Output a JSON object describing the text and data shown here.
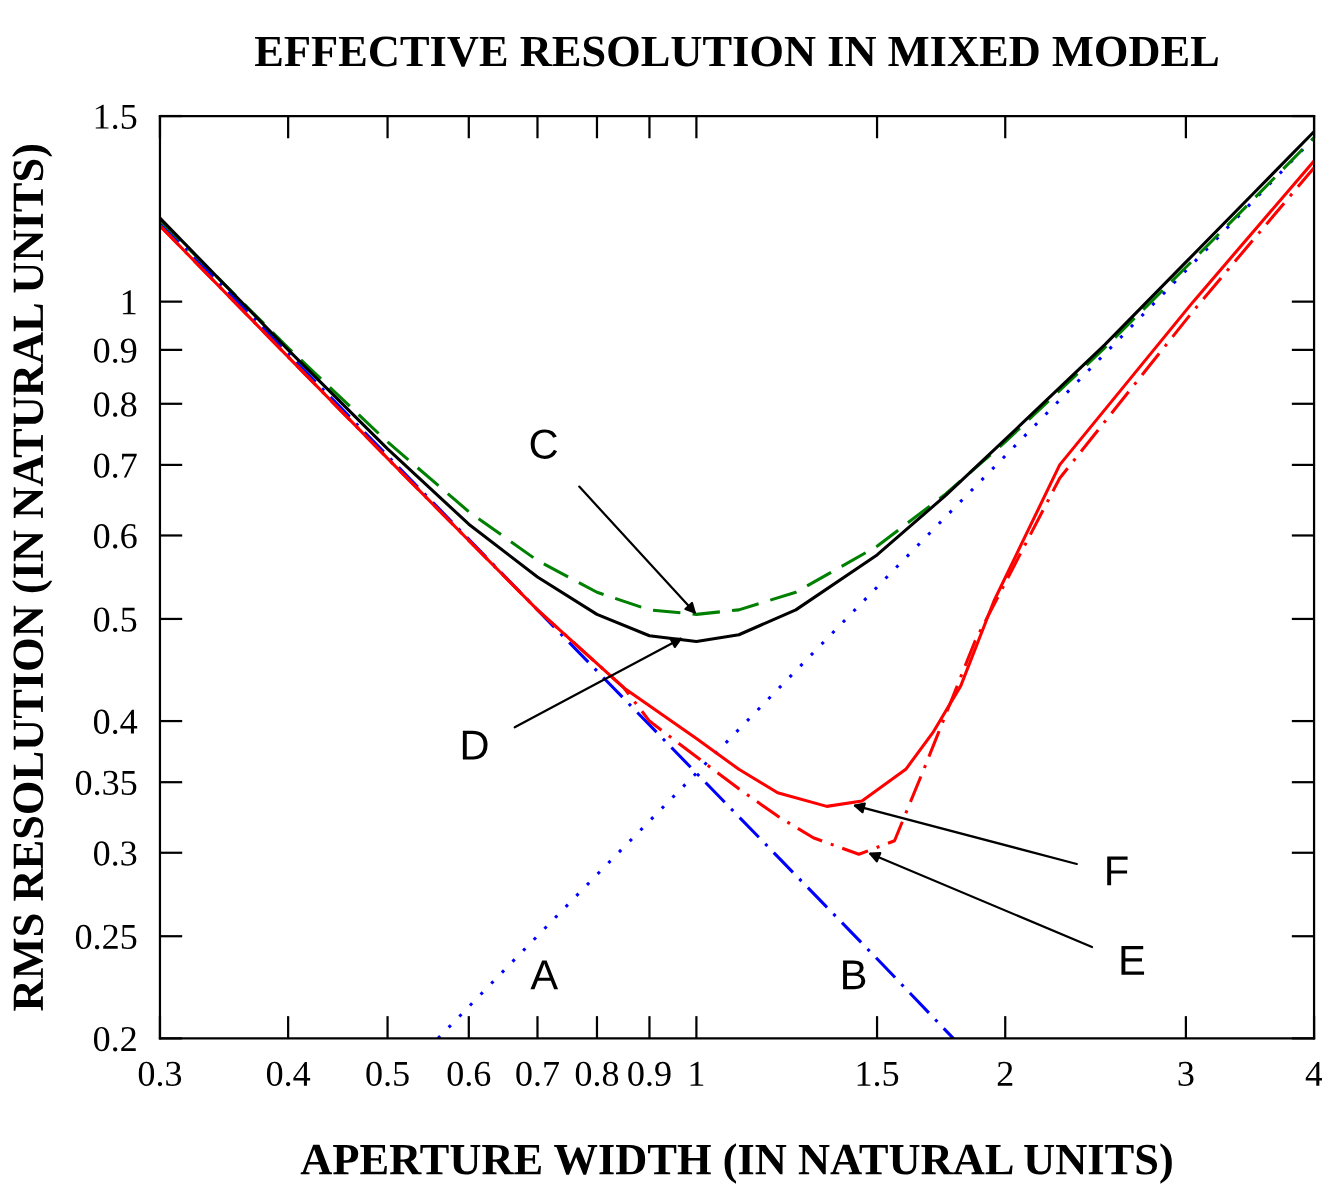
{
  "chart_data": {
    "type": "line",
    "title": "EFFECTIVE RESOLUTION IN MIXED MODEL",
    "xlabel": "APERTURE WIDTH (IN NATURAL UNITS)",
    "ylabel": "RMS RESOLUTION (IN NATURAL UNITS)",
    "log": "xy",
    "grid": false,
    "legend": false,
    "marker": "none",
    "xlim": [
      0.3,
      4
    ],
    "ylim": [
      0.2,
      1.5
    ],
    "xticks": [
      0.3,
      0.4,
      0.5,
      0.6,
      0.7,
      0.8,
      0.9,
      1,
      1.5,
      2,
      3,
      4
    ],
    "yticks": [
      0.2,
      0.25,
      0.3,
      0.35,
      0.4,
      0.5,
      0.6,
      0.7,
      0.8,
      0.9,
      1,
      1.5
    ],
    "series": [
      {
        "color": "#0000ff",
        "line_style": "dotted",
        "x": [
          0.56,
          0.8,
          1,
          1.5,
          2,
          3,
          4
        ],
        "values": [
          0.2,
          0.286,
          0.357,
          0.536,
          0.714,
          1.07,
          1.43
        ]
      },
      {
        "color": "#0000ff",
        "line_style": "dashdot",
        "x": [
          0.3,
          0.5,
          0.7,
          1,
          1.5,
          1.78
        ],
        "values": [
          1.19,
          0.714,
          0.51,
          0.357,
          0.238,
          0.2
        ]
      },
      {
        "color": "#008000",
        "line_style": "dashed",
        "x": [
          0.3,
          0.4,
          0.5,
          0.6,
          0.7,
          0.8,
          0.9,
          1,
          1.1,
          1.25,
          1.5,
          1.75,
          2,
          2.5,
          3,
          3.5,
          4
        ],
        "values": [
          1.195,
          0.904,
          0.736,
          0.632,
          0.568,
          0.53,
          0.51,
          0.505,
          0.51,
          0.53,
          0.586,
          0.657,
          0.736,
          0.904,
          1.078,
          1.254,
          1.431
        ]
      },
      {
        "color": "#000000",
        "line_style": "solid",
        "x": [
          0.3,
          0.4,
          0.5,
          0.6,
          0.7,
          0.8,
          0.9,
          1,
          1.1,
          1.25,
          1.5,
          1.75,
          2,
          2.5,
          3,
          3.5,
          4
        ],
        "values": [
          1.2,
          0.9,
          0.725,
          0.615,
          0.548,
          0.505,
          0.482,
          0.476,
          0.483,
          0.51,
          0.575,
          0.655,
          0.74,
          0.91,
          1.09,
          1.27,
          1.45
        ]
      },
      {
        "color": "#ff0000",
        "line_style": "solid",
        "x": [
          0.3,
          0.5,
          0.7,
          0.85,
          1,
          1.1,
          1.2,
          1.34,
          1.45,
          1.6,
          1.7,
          1.81,
          1.95,
          2.26,
          3.05,
          4
        ],
        "values": [
          1.18,
          0.71,
          0.51,
          0.43,
          0.385,
          0.36,
          0.342,
          0.332,
          0.336,
          0.36,
          0.39,
          0.432,
          0.52,
          0.7,
          1.0,
          1.36
        ]
      },
      {
        "color": "#ff0000",
        "line_style": "dashdot",
        "x": [
          0.3,
          0.5,
          0.7,
          0.85,
          0.9,
          1,
          1.1,
          1.2,
          1.3,
          1.44,
          1.56,
          1.67,
          1.87,
          2.26,
          3.05,
          4
        ],
        "values": [
          1.18,
          0.71,
          0.51,
          0.43,
          0.4,
          0.37,
          0.345,
          0.325,
          0.31,
          0.299,
          0.308,
          0.362,
          0.477,
          0.68,
          0.98,
          1.34
        ]
      }
    ],
    "annotations": [
      "A",
      "B",
      {
        "text": "C",
        "x": 1.0,
        "y": 0.505
      },
      {
        "text": "D",
        "x": 0.97,
        "y": 0.48
      },
      {
        "text": "F",
        "x": 1.42,
        "y": 0.333
      },
      {
        "text": "E",
        "x": 1.47,
        "y": 0.3
      }
    ]
  }
}
